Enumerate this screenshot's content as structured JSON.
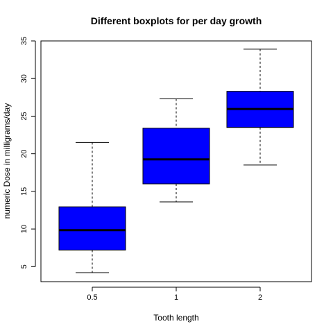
{
  "chart_data": {
    "type": "boxplot",
    "title": "Different boxplots for per day growth",
    "xlabel": "Tooth length",
    "ylabel": "numeric Dose in milligrams/day",
    "ylim": [
      3.0,
      35.0
    ],
    "yticks": [
      "5",
      "10",
      "15",
      "20",
      "25",
      "30",
      "35"
    ],
    "ytick_values": [
      5,
      10,
      15,
      20,
      25,
      30,
      35
    ],
    "categories": [
      "0.5",
      "1",
      "2"
    ],
    "box_color": "#0000ff",
    "boxes": [
      {
        "category": "0.5",
        "min": 4.2,
        "q1": 7.2,
        "median": 9.85,
        "q3": 12.95,
        "max": 21.5
      },
      {
        "category": "1",
        "min": 13.6,
        "q1": 16.0,
        "median": 19.25,
        "q3": 23.4,
        "max": 27.3
      },
      {
        "category": "2",
        "min": 18.5,
        "q1": 23.5,
        "median": 25.95,
        "q3": 28.3,
        "max": 33.9
      }
    ],
    "grid": false,
    "legend": "none"
  }
}
